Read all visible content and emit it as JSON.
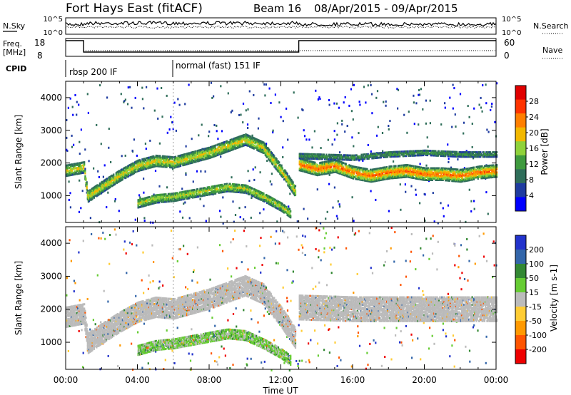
{
  "header": {
    "title": "Fort Hays East (fitACF)",
    "beam": "Beam 16",
    "date_range": "08/Apr/2015 - 09/Apr/2015"
  },
  "noise_panel": {
    "left_label": "N.Sky",
    "right_label": "N.Search",
    "left_ticks": [
      "10^5",
      "10^0"
    ],
    "right_ticks": [
      "10^5",
      "10^0"
    ]
  },
  "freq_panel": {
    "left_label_1": "Freq.",
    "left_label_2": "[MHz]",
    "right_label": "Nave",
    "left_ticks": [
      "18",
      "8"
    ],
    "right_ticks": [
      "60",
      "0"
    ],
    "freq_segments": [
      {
        "start_h": 0,
        "end_h": 1.0,
        "value_mhz": 18
      },
      {
        "start_h": 1.0,
        "end_h": 13.0,
        "value_mhz": 8
      },
      {
        "start_h": 13.0,
        "end_h": 22.0,
        "value_mhz": 18
      },
      {
        "start_h": 22.0,
        "end_h": 24.0,
        "value_mhz": 18
      }
    ]
  },
  "cpid_panel": {
    "label": "CPID",
    "segments": [
      {
        "start_h": 0,
        "text": "rbsp 200 IF"
      },
      {
        "start_h": 6,
        "text": "normal (fast) 151 IF"
      }
    ]
  },
  "colors": {
    "power": [
      "#0000ff",
      "#1f3ca0",
      "#2f6e5a",
      "#3e9a3e",
      "#8fd23a",
      "#f2b800",
      "#ff7f00",
      "#ff3300",
      "#e00000"
    ],
    "velocity": [
      "#2233cc",
      "#3366aa",
      "#338833",
      "#66cc33",
      "#bbbbbb",
      "#ffcc33",
      "#ff9900",
      "#ff5500",
      "#ee0000"
    ]
  },
  "chart_data": [
    {
      "type": "heatmap",
      "quantity": "Power",
      "ylabel": "Slant Range [km]",
      "ylim": [
        180,
        4500
      ],
      "yticks": [
        1000,
        2000,
        3000,
        4000
      ],
      "xlim": [
        0,
        24
      ],
      "colorbar": {
        "label": "Power [dB]",
        "ticks": [
          4,
          8,
          12,
          16,
          20,
          24,
          28
        ],
        "range": [
          0,
          32
        ]
      },
      "bands": [
        {
          "points": [
            [
              0,
              1800
            ],
            [
              1,
              1900
            ],
            [
              1.2,
              1000
            ],
            [
              2,
              1300
            ],
            [
              3,
              1650
            ],
            [
              4,
              1950
            ],
            [
              5,
              2100
            ],
            [
              6,
              2050
            ],
            [
              7,
              2200
            ],
            [
              8,
              2350
            ],
            [
              9,
              2550
            ],
            [
              10,
              2750
            ],
            [
              11,
              2500
            ],
            [
              12,
              1800
            ],
            [
              12.8,
              1150
            ]
          ],
          "width": 320,
          "power": 16
        },
        {
          "points": [
            [
              4,
              800
            ],
            [
              5,
              950
            ],
            [
              6,
              1000
            ],
            [
              7,
              1100
            ],
            [
              8,
              1200
            ],
            [
              9,
              1300
            ],
            [
              10,
              1250
            ],
            [
              11,
              1000
            ],
            [
              12,
              700
            ],
            [
              12.5,
              500
            ]
          ],
          "width": 260,
          "power": 14
        },
        {
          "points": [
            [
              13,
              2000
            ],
            [
              14,
              1850
            ],
            [
              15,
              1950
            ],
            [
              16,
              1750
            ],
            [
              17,
              1650
            ],
            [
              18,
              1750
            ],
            [
              19,
              1800
            ],
            [
              20,
              1700
            ],
            [
              21,
              1700
            ],
            [
              22,
              1650
            ],
            [
              23,
              1750
            ],
            [
              24,
              1800
            ]
          ],
          "width": 380,
          "power": 22
        },
        {
          "points": [
            [
              13,
              2250
            ],
            [
              16,
              2200
            ],
            [
              18,
              2300
            ],
            [
              20,
              2350
            ],
            [
              22,
              2300
            ],
            [
              24,
              2300
            ]
          ],
          "width": 150,
          "power": 8
        }
      ]
    },
    {
      "type": "heatmap",
      "quantity": "Velocity",
      "ylabel": "Slant Range [km]",
      "ylim": [
        180,
        4500
      ],
      "yticks": [
        1000,
        2000,
        3000,
        4000
      ],
      "xlim": [
        0,
        24
      ],
      "xticks": [
        "00:00",
        "04:00",
        "08:00",
        "12:00",
        "16:00",
        "20:00",
        "00:00"
      ],
      "xlabel": "Time UT",
      "colorbar": {
        "label": "Velocity [m s-1]",
        "ticks": [
          200,
          100,
          50,
          15,
          -15,
          -50,
          -100,
          -200
        ],
        "range": [
          -250,
          250
        ]
      },
      "bands": [
        {
          "points": [
            [
              0,
              1800
            ],
            [
              1,
              1900
            ],
            [
              1.2,
              1000
            ],
            [
              2,
              1300
            ],
            [
              3,
              1650
            ],
            [
              4,
              1950
            ],
            [
              5,
              2100
            ],
            [
              6,
              2050
            ],
            [
              7,
              2200
            ],
            [
              8,
              2350
            ],
            [
              9,
              2550
            ],
            [
              10,
              2750
            ],
            [
              11,
              2500
            ],
            [
              12,
              1800
            ],
            [
              12.8,
              1150
            ]
          ],
          "width": 600,
          "velocity": 0
        },
        {
          "points": [
            [
              4,
              800
            ],
            [
              5,
              950
            ],
            [
              6,
              1000
            ],
            [
              7,
              1100
            ],
            [
              8,
              1200
            ],
            [
              9,
              1300
            ],
            [
              10,
              1250
            ],
            [
              11,
              1000
            ],
            [
              12,
              700
            ],
            [
              12.5,
              500
            ]
          ],
          "width": 300,
          "velocity": 20
        },
        {
          "points": [
            [
              13,
              2100
            ],
            [
              16,
              2050
            ],
            [
              20,
              2050
            ],
            [
              24,
              2050
            ]
          ],
          "width": 750,
          "velocity": 0
        }
      ]
    }
  ]
}
